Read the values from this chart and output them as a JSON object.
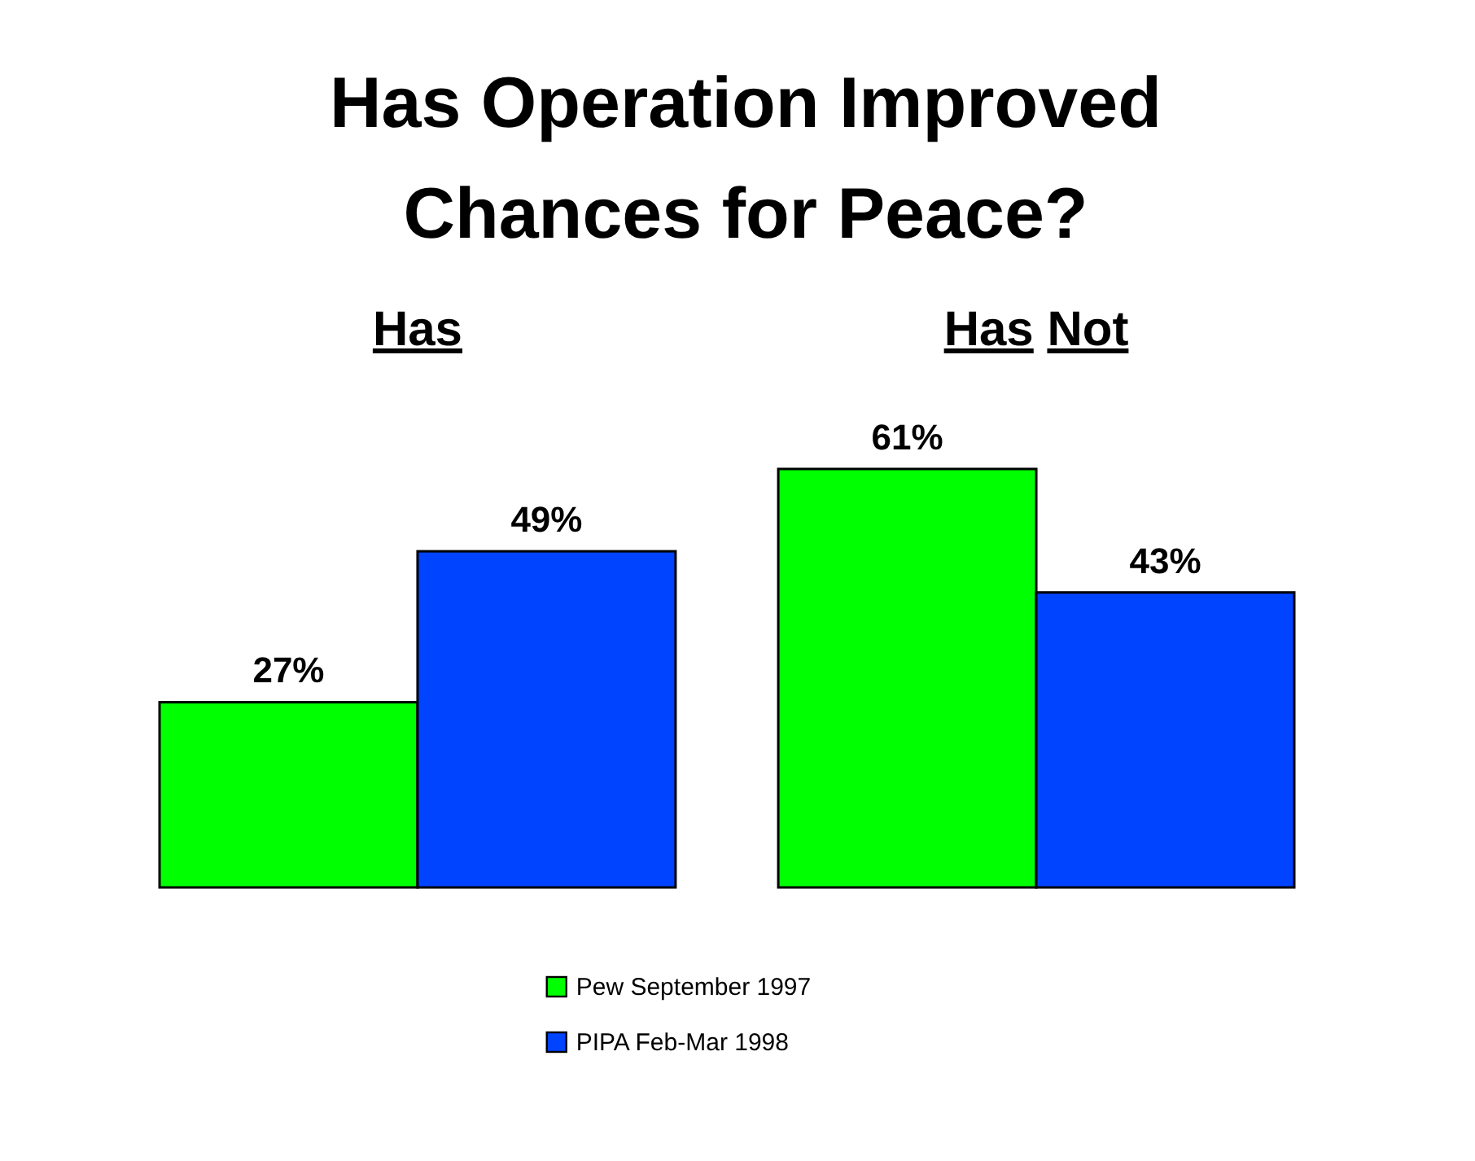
{
  "chart_data": {
    "type": "bar",
    "title": "Has Operation Improved Chances for Peace?",
    "categories": [
      "Has",
      "Has Not"
    ],
    "series": [
      {
        "name": "Pew September 1997",
        "color": "#00ff00",
        "values": [
          27,
          61
        ],
        "value_labels": [
          "27%",
          "61%"
        ]
      },
      {
        "name": "PIPA Feb-Mar 1998",
        "color": "#0044ff",
        "values": [
          49,
          43
        ],
        "value_labels": [
          "49%",
          "43%"
        ]
      }
    ],
    "legend": "bottom"
  }
}
